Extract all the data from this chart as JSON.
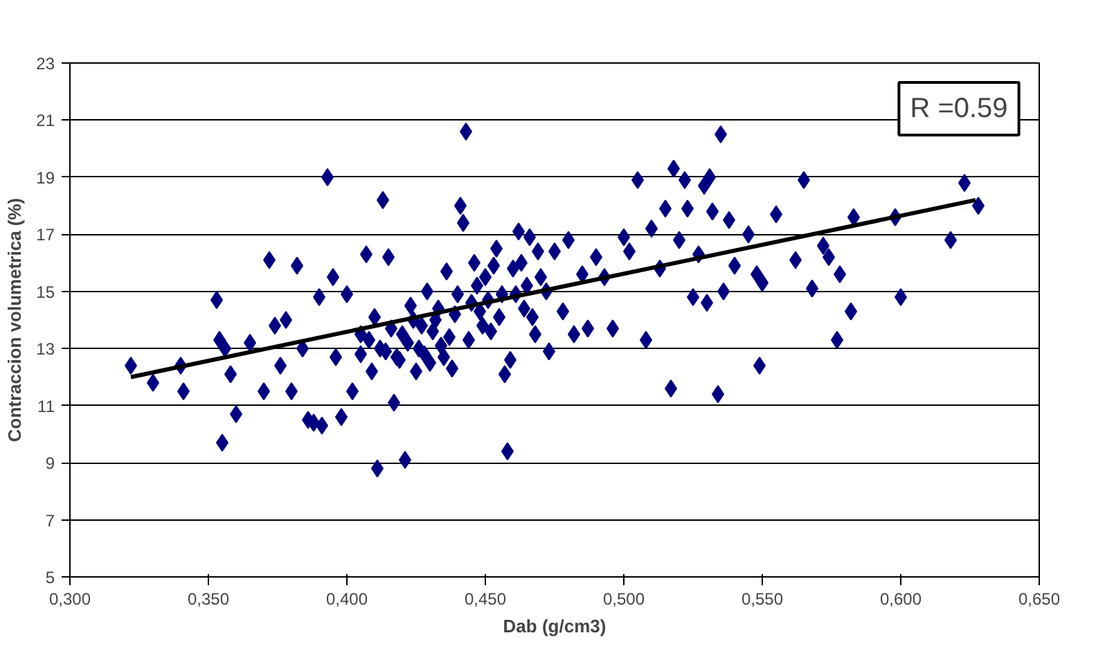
{
  "chart_data": {
    "type": "scatter",
    "xlabel": "Dab (g/cm3)",
    "ylabel": "Contraccion volumetrica (%)",
    "xlim": [
      0.3,
      0.65
    ],
    "ylim": [
      5,
      23
    ],
    "xticks": [
      {
        "value": 0.3,
        "label": "0,300"
      },
      {
        "value": 0.35,
        "label": "0,350"
      },
      {
        "value": 0.4,
        "label": "0,400"
      },
      {
        "value": 0.45,
        "label": "0,450"
      },
      {
        "value": 0.5,
        "label": "0,500"
      },
      {
        "value": 0.55,
        "label": "0,550"
      },
      {
        "value": 0.6,
        "label": "0,600"
      },
      {
        "value": 0.65,
        "label": "0,650"
      }
    ],
    "yticks": [
      5,
      7,
      9,
      11,
      13,
      15,
      17,
      19,
      21,
      23
    ],
    "grid": "y",
    "marker": "diamond",
    "annotations": [
      "R =0.59"
    ],
    "series": [
      {
        "color": "#000080",
        "x": [
          0.322,
          0.33,
          0.34,
          0.341,
          0.353,
          0.354,
          0.355,
          0.356,
          0.358,
          0.36,
          0.365,
          0.37,
          0.372,
          0.374,
          0.376,
          0.378,
          0.38,
          0.382,
          0.384,
          0.386,
          0.388,
          0.39,
          0.391,
          0.393,
          0.395,
          0.396,
          0.398,
          0.4,
          0.402,
          0.405,
          0.407,
          0.409,
          0.41,
          0.411,
          0.412,
          0.413,
          0.415,
          0.417,
          0.418,
          0.42,
          0.421,
          0.423,
          0.425,
          0.427,
          0.429,
          0.43,
          0.432,
          0.434,
          0.436,
          0.438,
          0.44,
          0.441,
          0.442,
          0.443,
          0.444,
          0.446,
          0.448,
          0.45,
          0.452,
          0.454,
          0.456,
          0.457,
          0.458,
          0.459,
          0.46,
          0.462,
          0.464,
          0.466,
          0.468,
          0.47,
          0.473,
          0.475,
          0.478,
          0.48,
          0.482,
          0.485,
          0.487,
          0.49,
          0.493,
          0.496,
          0.5,
          0.502,
          0.505,
          0.508,
          0.51,
          0.513,
          0.515,
          0.517,
          0.518,
          0.52,
          0.522,
          0.523,
          0.525,
          0.527,
          0.529,
          0.53,
          0.531,
          0.532,
          0.534,
          0.535,
          0.536,
          0.538,
          0.54,
          0.545,
          0.548,
          0.549,
          0.55,
          0.555,
          0.562,
          0.565,
          0.568,
          0.572,
          0.574,
          0.577,
          0.578,
          0.582,
          0.583,
          0.598,
          0.6,
          0.618,
          0.623,
          0.628,
          0.405,
          0.408,
          0.414,
          0.416,
          0.419,
          0.422,
          0.424,
          0.426,
          0.428,
          0.431,
          0.433,
          0.435,
          0.437,
          0.439,
          0.445,
          0.447,
          0.449,
          0.451,
          0.453,
          0.455,
          0.461,
          0.463,
          0.465,
          0.467,
          0.469,
          0.472
        ],
        "values": [
          12.4,
          11.8,
          12.4,
          11.5,
          14.7,
          13.3,
          9.7,
          13.0,
          12.1,
          10.7,
          13.2,
          11.5,
          16.1,
          13.8,
          12.4,
          14.0,
          11.5,
          15.9,
          13.0,
          10.5,
          10.4,
          14.8,
          10.3,
          19.0,
          15.5,
          12.7,
          10.6,
          14.9,
          11.5,
          13.5,
          16.3,
          12.2,
          14.1,
          8.8,
          13.0,
          18.2,
          16.2,
          11.1,
          12.7,
          13.5,
          9.1,
          14.5,
          12.2,
          13.8,
          15.0,
          12.5,
          14.0,
          13.1,
          15.7,
          12.3,
          14.9,
          18.0,
          17.4,
          20.6,
          13.3,
          16.0,
          14.3,
          15.5,
          13.6,
          16.5,
          14.9,
          12.1,
          9.4,
          12.6,
          15.8,
          17.1,
          14.4,
          16.9,
          13.5,
          15.5,
          12.9,
          16.4,
          14.3,
          16.8,
          13.5,
          15.6,
          13.7,
          16.2,
          15.5,
          13.7,
          16.9,
          16.4,
          18.9,
          13.3,
          17.2,
          15.8,
          17.9,
          11.6,
          19.3,
          16.8,
          18.9,
          17.9,
          14.8,
          16.3,
          18.7,
          14.6,
          19.0,
          17.8,
          11.4,
          20.5,
          15.0,
          17.5,
          15.9,
          17.0,
          15.6,
          12.4,
          15.3,
          17.7,
          16.1,
          18.9,
          15.1,
          16.6,
          16.2,
          13.3,
          15.6,
          14.3,
          17.6,
          17.6,
          14.8,
          16.8,
          18.8,
          18.0,
          12.8,
          13.3,
          12.9,
          13.7,
          12.6,
          13.2,
          14.0,
          13.0,
          12.8,
          13.6,
          14.4,
          12.7,
          13.4,
          14.2,
          14.6,
          15.2,
          13.8,
          14.7,
          15.9,
          14.1,
          14.9,
          16.0,
          15.2,
          14.1,
          16.4,
          15.0
        ]
      },
      {
        "type": "line",
        "color": "#000000",
        "marker": "none",
        "x": [
          0.322,
          0.627
        ],
        "values": [
          12.0,
          18.2
        ]
      }
    ]
  }
}
